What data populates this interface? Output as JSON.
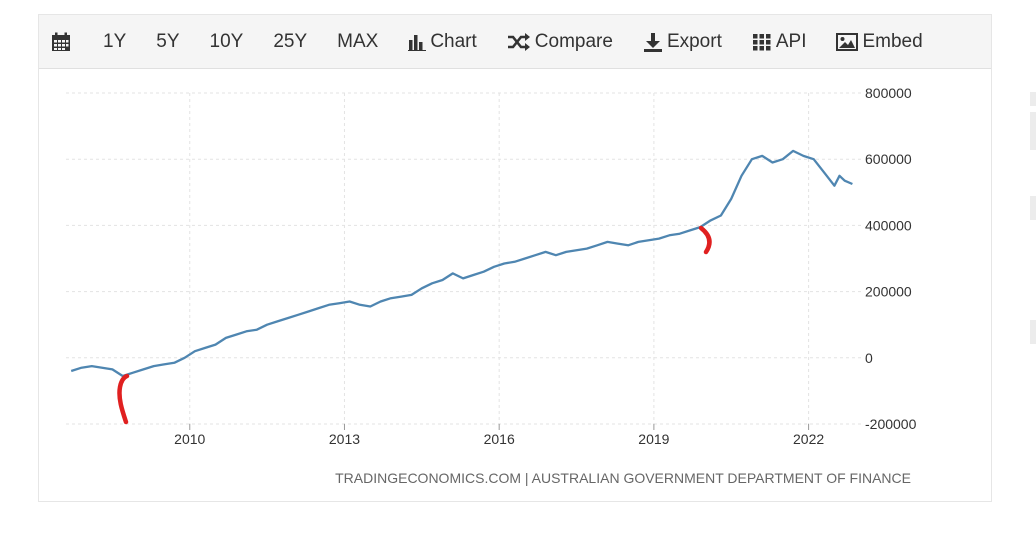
{
  "toolbar": {
    "ranges": [
      "1Y",
      "5Y",
      "10Y",
      "25Y",
      "MAX"
    ],
    "chart_label": "Chart",
    "compare_label": "Compare",
    "export_label": "Export",
    "api_label": "API",
    "embed_label": "Embed",
    "icons": [
      "calendar-icon",
      "bar-chart-icon",
      "shuffle-icon",
      "download-icon",
      "grid-icon",
      "image-icon"
    ]
  },
  "source": "TRADINGECONOMICS.COM  |  AUSTRALIAN GOVERNMENT DEPARTMENT OF FINANCE",
  "colors": {
    "line": "#4f86b1",
    "annotation": "#e02020",
    "grid": "#e3e3e3",
    "axis_text": "#333333"
  },
  "chart_data": {
    "type": "line",
    "title": "",
    "xlabel": "",
    "ylabel": "",
    "x_ticks": [
      "2010",
      "2013",
      "2016",
      "2019",
      "2022"
    ],
    "y_ticks": [
      "800000",
      "600000",
      "400000",
      "200000",
      "0",
      "-200000"
    ],
    "ylim": [
      -200000,
      800000
    ],
    "xlim": [
      2007.6,
      2022.9
    ],
    "grid": true,
    "legend": "none",
    "series": [
      {
        "values": [
          [
            2007.7,
            -40000
          ],
          [
            2007.9,
            -30000
          ],
          [
            2008.1,
            -25000
          ],
          [
            2008.3,
            -30000
          ],
          [
            2008.5,
            -35000
          ],
          [
            2008.7,
            -55000
          ],
          [
            2008.9,
            -45000
          ],
          [
            2009.1,
            -35000
          ],
          [
            2009.3,
            -25000
          ],
          [
            2009.5,
            -20000
          ],
          [
            2009.7,
            -15000
          ],
          [
            2009.9,
            0
          ],
          [
            2010.1,
            20000
          ],
          [
            2010.3,
            30000
          ],
          [
            2010.5,
            40000
          ],
          [
            2010.7,
            60000
          ],
          [
            2010.9,
            70000
          ],
          [
            2011.1,
            80000
          ],
          [
            2011.3,
            85000
          ],
          [
            2011.5,
            100000
          ],
          [
            2011.7,
            110000
          ],
          [
            2011.9,
            120000
          ],
          [
            2012.1,
            130000
          ],
          [
            2012.3,
            140000
          ],
          [
            2012.5,
            150000
          ],
          [
            2012.7,
            160000
          ],
          [
            2012.9,
            165000
          ],
          [
            2013.1,
            170000
          ],
          [
            2013.3,
            160000
          ],
          [
            2013.5,
            155000
          ],
          [
            2013.7,
            170000
          ],
          [
            2013.9,
            180000
          ],
          [
            2014.1,
            185000
          ],
          [
            2014.3,
            190000
          ],
          [
            2014.5,
            210000
          ],
          [
            2014.7,
            225000
          ],
          [
            2014.9,
            235000
          ],
          [
            2015.1,
            255000
          ],
          [
            2015.3,
            240000
          ],
          [
            2015.5,
            250000
          ],
          [
            2015.7,
            260000
          ],
          [
            2015.9,
            275000
          ],
          [
            2016.1,
            285000
          ],
          [
            2016.3,
            290000
          ],
          [
            2016.5,
            300000
          ],
          [
            2016.7,
            310000
          ],
          [
            2016.9,
            320000
          ],
          [
            2017.1,
            310000
          ],
          [
            2017.3,
            320000
          ],
          [
            2017.5,
            325000
          ],
          [
            2017.7,
            330000
          ],
          [
            2017.9,
            340000
          ],
          [
            2018.1,
            350000
          ],
          [
            2018.3,
            345000
          ],
          [
            2018.5,
            340000
          ],
          [
            2018.7,
            350000
          ],
          [
            2018.9,
            355000
          ],
          [
            2019.1,
            360000
          ],
          [
            2019.3,
            370000
          ],
          [
            2019.5,
            375000
          ],
          [
            2019.7,
            385000
          ],
          [
            2019.9,
            395000
          ],
          [
            2020.1,
            415000
          ],
          [
            2020.3,
            430000
          ],
          [
            2020.5,
            480000
          ],
          [
            2020.7,
            550000
          ],
          [
            2020.9,
            600000
          ],
          [
            2021.1,
            610000
          ],
          [
            2021.3,
            590000
          ],
          [
            2021.5,
            600000
          ],
          [
            2021.7,
            625000
          ],
          [
            2021.9,
            610000
          ],
          [
            2022.1,
            600000
          ],
          [
            2022.3,
            560000
          ],
          [
            2022.5,
            520000
          ],
          [
            2022.6,
            550000
          ],
          [
            2022.7,
            535000
          ],
          [
            2022.85,
            525000
          ]
        ]
      }
    ]
  }
}
